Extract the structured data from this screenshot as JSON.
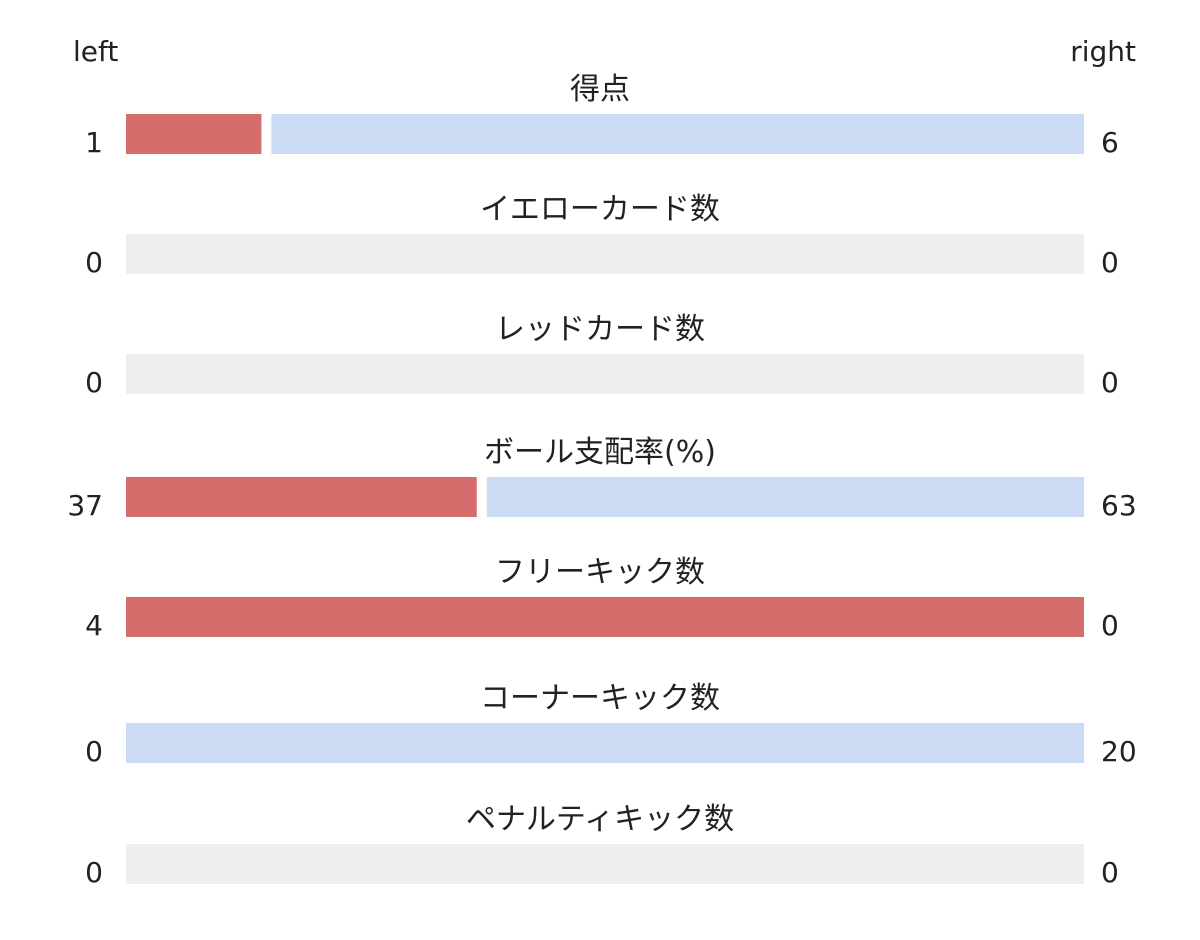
{
  "header": {
    "left_label": "left",
    "right_label": "right"
  },
  "colors": {
    "left": "#d46d6b",
    "right": "#cbdbf4",
    "empty": "#eeeeee"
  },
  "chart_data": {
    "type": "bar",
    "orientation": "horizontal",
    "stacked_normalized": true,
    "series": [
      {
        "name": "left",
        "values": [
          1,
          0,
          0,
          37,
          4,
          0,
          0
        ]
      },
      {
        "name": "right",
        "values": [
          6,
          0,
          0,
          63,
          0,
          20,
          0
        ]
      }
    ],
    "categories": [
      "得点",
      "イエローカード数",
      "レッドカード数",
      "ボール支配率(%)",
      "フリーキック数",
      "コーナーキック数",
      "ペナルティキック数"
    ],
    "rows": [
      {
        "label": "得点",
        "left": 1,
        "right": 6
      },
      {
        "label": "イエローカード数",
        "left": 0,
        "right": 0
      },
      {
        "label": "レッドカード数",
        "left": 0,
        "right": 0
      },
      {
        "label": "ボール支配率(%)",
        "left": 37,
        "right": 63
      },
      {
        "label": "フリーキック数",
        "left": 4,
        "right": 0
      },
      {
        "label": "コーナーキック数",
        "left": 0,
        "right": 20
      },
      {
        "label": "ペナルティキック数",
        "left": 0,
        "right": 0
      }
    ]
  }
}
